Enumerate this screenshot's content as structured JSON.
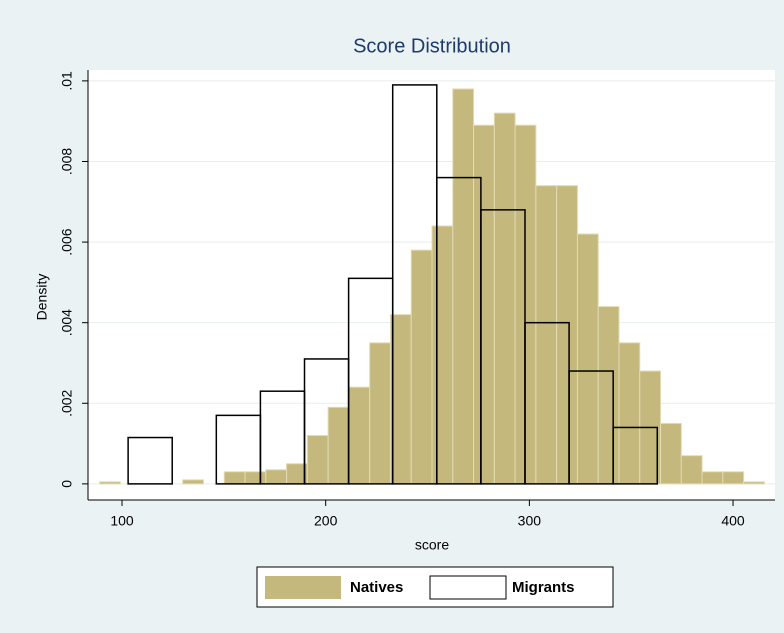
{
  "chart_data": {
    "type": "histogram",
    "title": "Score Distribution",
    "xlabel": "score",
    "ylabel": "Density",
    "xlim": [
      83.3,
      420.6
    ],
    "ylim": [
      -0.0004,
      0.01027
    ],
    "xticks": [
      100,
      200,
      300,
      400
    ],
    "yticks": [
      0,
      {
        "value": 0.002,
        "label": ".002"
      },
      {
        "value": 0.004,
        "label": ".004"
      },
      {
        "value": 0.006,
        "label": ".006"
      },
      {
        "value": 0.008,
        "label": ".008"
      },
      {
        "value": 0.01,
        "label": ".01"
      }
    ],
    "grid": true,
    "legend": "bottom",
    "series": [
      {
        "name": "Natives",
        "color": "#c4b87c",
        "edgecolor": "#e2dbb4",
        "bins": [
          89,
          99.2,
          109.4,
          119.6,
          129.8,
          140,
          150.2,
          160.4,
          170.6,
          180.8,
          191,
          201.2,
          211.4,
          221.6,
          231.8,
          242,
          252.2,
          262.4,
          272.6,
          282.8,
          293,
          303.2,
          313.4,
          323.6,
          333.8,
          344,
          354.2,
          364.4,
          374.6,
          384.8,
          395,
          405.2,
          415.4
        ],
        "values": [
          5e-05,
          0,
          0,
          0,
          0.0001,
          0,
          0.0003,
          0.0003,
          0.00035,
          0.0005,
          0.0012,
          0.0019,
          0.0024,
          0.0035,
          0.0042,
          0.0058,
          0.0064,
          0.0098,
          0.0089,
          0.0092,
          0.0089,
          0.0074,
          0.0074,
          0.0062,
          0.0044,
          0.0035,
          0.0028,
          0.0015,
          0.0007,
          0.0003,
          0.0003,
          5e-05
        ]
      },
      {
        "name": "Migrants",
        "color": "none",
        "edgecolor": "#000000",
        "bins": [
          103,
          124.65,
          146.3,
          167.95,
          189.6,
          211.25,
          232.9,
          254.55,
          276.2,
          297.85,
          319.5,
          341.15,
          362.8
        ],
        "values": [
          0.00115,
          0,
          0.0017,
          0.0023,
          0.0031,
          0.0051,
          0.0099,
          0.0076,
          0.0068,
          0.004,
          0.0028,
          0.0014
        ]
      }
    ]
  }
}
